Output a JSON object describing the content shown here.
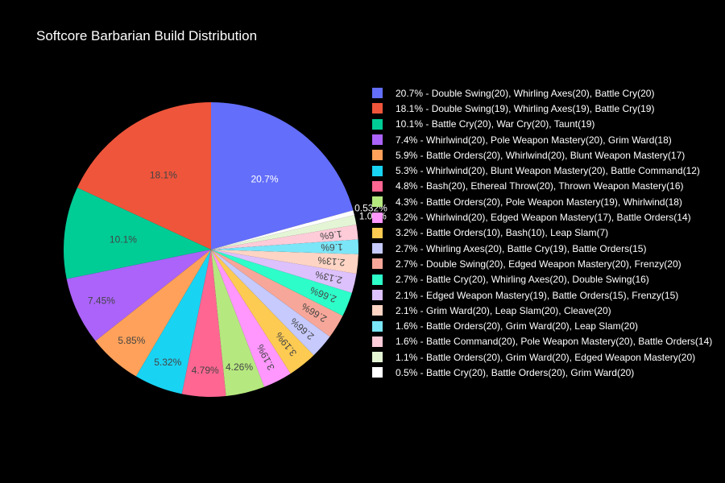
{
  "chart_data": {
    "type": "pie",
    "title": "Softcore Barbarian Build Distribution",
    "direction": "counterclockwise",
    "legend_position": "right",
    "slices": [
      {
        "legend": "20.7% - Double Swing(20), Whirling Axes(20), Battle Cry(20)",
        "label": "20.7%",
        "value": 20.7,
        "color": "#636efa",
        "text_color": "#ffffff"
      },
      {
        "legend": "18.1% - Double Swing(19), Whirling Axes(19), Battle Cry(19)",
        "label": "18.1%",
        "value": 18.1,
        "color": "#ef553b",
        "text_color": "#444444"
      },
      {
        "legend": "10.1% - Battle Cry(20), War Cry(20), Taunt(19)",
        "label": "10.1%",
        "value": 10.1,
        "color": "#00cc96",
        "text_color": "#444444"
      },
      {
        "legend": "7.4% - Whirlwind(20), Pole Weapon Mastery(20), Grim Ward(18)",
        "label": "7.45%",
        "value": 7.45,
        "color": "#ab63fa",
        "text_color": "#444444"
      },
      {
        "legend": "5.9% - Battle Orders(20), Whirlwind(20), Blunt Weapon Mastery(17)",
        "label": "5.85%",
        "value": 5.85,
        "color": "#ffa15a",
        "text_color": "#444444"
      },
      {
        "legend": "5.3% - Whirlwind(20), Blunt Weapon Mastery(20), Battle Command(12)",
        "label": "5.32%",
        "value": 5.32,
        "color": "#19d3f3",
        "text_color": "#444444"
      },
      {
        "legend": "4.8% - Bash(20), Ethereal Throw(20), Thrown Weapon Mastery(16)",
        "label": "4.79%",
        "value": 4.79,
        "color": "#ff6692",
        "text_color": "#444444"
      },
      {
        "legend": "4.3% - Battle Orders(20), Pole Weapon Mastery(19), Whirlwind(18)",
        "label": "4.26%",
        "value": 4.26,
        "color": "#b6e880",
        "text_color": "#444444"
      },
      {
        "legend": "3.2% - Whirlwind(20), Edged Weapon Mastery(17), Battle Orders(14)",
        "label": "3.19%",
        "value": 3.19,
        "color": "#ff97ff",
        "text_color": "#444444"
      },
      {
        "legend": "3.2% - Battle Orders(10), Bash(10), Leap Slam(7)",
        "label": "3.19%",
        "value": 3.19,
        "color": "#fecb52",
        "text_color": "#444444"
      },
      {
        "legend": "2.7% - Whirling Axes(20), Battle Cry(19), Battle Orders(15)",
        "label": "2.66%",
        "value": 2.66,
        "color": "#c6cafd",
        "text_color": "#444444"
      },
      {
        "legend": "2.7% - Double Swing(20), Edged Weapon Mastery(20), Frenzy(20)",
        "label": "2.66%",
        "value": 2.66,
        "color": "#f7a799",
        "text_color": "#444444"
      },
      {
        "legend": "2.7% - Battle Cry(20), Whirling Axes(20), Double Swing(16)",
        "label": "2.66%",
        "value": 2.66,
        "color": "#2dfec9",
        "text_color": "#444444"
      },
      {
        "legend": "2.1% - Edged Weapon Mastery(19), Battle Orders(15), Frenzy(15)",
        "label": "2.13%",
        "value": 2.13,
        "color": "#dcc1fd",
        "text_color": "#444444"
      },
      {
        "legend": "2.1% - Grim Ward(20), Leap Slam(20), Cleave(20)",
        "label": "2.13%",
        "value": 2.13,
        "color": "#fed4c4",
        "text_color": "#444444"
      },
      {
        "legend": "1.6% - Battle Orders(20), Grim Ward(20), Leap Slam(20)",
        "label": "1.6%",
        "value": 1.6,
        "color": "#7ae6f8",
        "text_color": "#444444"
      },
      {
        "legend": "1.6% - Battle Command(20), Pole Weapon Mastery(20), Battle Orders(14)",
        "label": "1.6%",
        "value": 1.6,
        "color": "#fecbd9",
        "text_color": "#444444"
      },
      {
        "legend": "1.1% - Battle Orders(20), Grim Ward(20), Edged Weapon Mastery(20)",
        "label": "1.06%",
        "value": 1.06,
        "color": "#e4f5d5",
        "text_color": "#ffffff"
      },
      {
        "legend": "0.5% - Battle Cry(20), Battle Orders(20), Grim Ward(20)",
        "label": "0.532%",
        "value": 0.532,
        "color": "#ffffff",
        "text_color": "#ffffff"
      }
    ]
  }
}
